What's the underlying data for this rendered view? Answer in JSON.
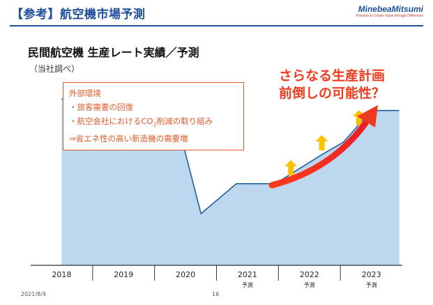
{
  "header": {
    "title": "【参考】航空機市場予測",
    "logo": "MinebeaMitsumi",
    "logo_tagline": "Passion to Create Value through Difference"
  },
  "chart_data": {
    "type": "area",
    "title": "民間航空機 生産レート実績／予測",
    "subtitle": "（当社調べ）",
    "categories": [
      "2018",
      "2019",
      "2020",
      "2021",
      "2022",
      "2023"
    ],
    "category_notes": [
      "",
      "",
      "",
      "予測",
      "予測",
      "予測"
    ],
    "x": [
      0,
      0.6,
      0.82,
      1.82,
      2.25,
      2.82,
      3.45,
      4.18,
      4.55,
      5.0,
      5.45
    ],
    "y": [
      100,
      100,
      93,
      93,
      31,
      49,
      49,
      66,
      74,
      93,
      93
    ],
    "xlim": [
      -0.5,
      5.5
    ],
    "ylim": [
      0,
      110
    ],
    "series_color": "#bdd7ee",
    "line_color": "#1f5f99",
    "upward_arrows": [
      3.7,
      4.2,
      4.8
    ],
    "upward_arrow_levels": [
      56,
      71,
      86
    ],
    "trend_arrow_color": "#ee3b1e",
    "small_arrow_color": "#ffc000"
  },
  "box": {
    "title": "外部環境",
    "line1": "・旅客需要の回復",
    "line2_pre": "・航空会社におけるCO",
    "line2_sub": "2",
    "line2_post": "削減の取り組み",
    "line3": "⇒省エネ性の高い新造機の需要増"
  },
  "callout": {
    "line1": "さらなる生産計画",
    "line2": "前倒しの可能性？"
  },
  "footer": {
    "date": "2021/8/4",
    "page": "16"
  }
}
